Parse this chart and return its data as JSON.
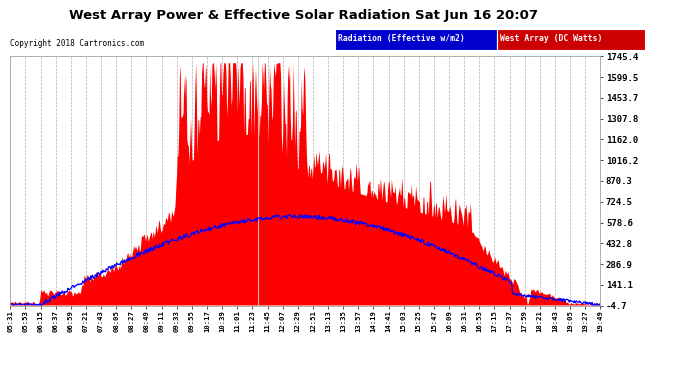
{
  "title": "West Array Power & Effective Solar Radiation Sat Jun 16 20:07",
  "copyright": "Copyright 2018 Cartronics.com",
  "legend_radiation": "Radiation (Effective w/m2)",
  "legend_west": "West Array (DC Watts)",
  "yticks": [
    -4.7,
    141.1,
    286.9,
    432.8,
    578.6,
    724.5,
    870.3,
    1016.2,
    1162.0,
    1307.8,
    1453.7,
    1599.5,
    1745.4
  ],
  "ymin": -4.7,
  "ymax": 1745.4,
  "bg_color": "#ffffff",
  "plot_bg_color": "#ffffff",
  "grid_color": "#aaaaaa",
  "title_color": "#000000",
  "radiation_color": "#0000ff",
  "west_color": "#ff0000",
  "x_labels": [
    "05:31",
    "05:53",
    "06:15",
    "06:37",
    "06:59",
    "07:21",
    "07:43",
    "08:05",
    "08:27",
    "08:49",
    "09:11",
    "09:33",
    "09:55",
    "10:17",
    "10:39",
    "11:01",
    "11:23",
    "11:45",
    "12:07",
    "12:29",
    "12:51",
    "13:13",
    "13:35",
    "13:57",
    "14:19",
    "14:41",
    "15:03",
    "15:25",
    "15:47",
    "16:09",
    "16:31",
    "16:53",
    "17:15",
    "17:37",
    "17:59",
    "18:21",
    "18:43",
    "19:05",
    "19:27",
    "19:49"
  ]
}
